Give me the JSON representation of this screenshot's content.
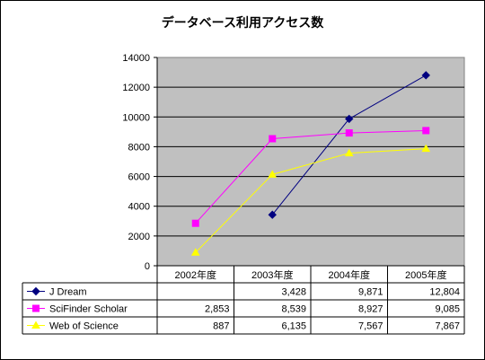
{
  "chart_data": {
    "type": "line",
    "title": "データベース利用アクセス数",
    "categories": [
      "2002年度",
      "2003年度",
      "2004年度",
      "2005年度"
    ],
    "ylim": [
      0,
      14000
    ],
    "yticks": [
      "0",
      "2000",
      "4000",
      "6000",
      "8000",
      "10000",
      "12000",
      "14000"
    ],
    "grid": true,
    "legend": "data-table-left",
    "series": [
      {
        "name": "J Dream",
        "color": "#000080",
        "marker": "diamond",
        "values": [
          null,
          3428,
          9871,
          12804
        ],
        "labels": [
          "",
          "3,428",
          "9,871",
          "12,804"
        ]
      },
      {
        "name": "SciFinder Scholar",
        "color": "#ff00ff",
        "marker": "square",
        "values": [
          2853,
          8539,
          8927,
          9085
        ],
        "labels": [
          "2,853",
          "8,539",
          "8,927",
          "9,085"
        ]
      },
      {
        "name": "Web of Science",
        "color": "#ffff00",
        "marker": "triangle",
        "values": [
          887,
          6135,
          7567,
          7867
        ],
        "labels": [
          "887",
          "6,135",
          "7,567",
          "7,867"
        ]
      }
    ]
  }
}
